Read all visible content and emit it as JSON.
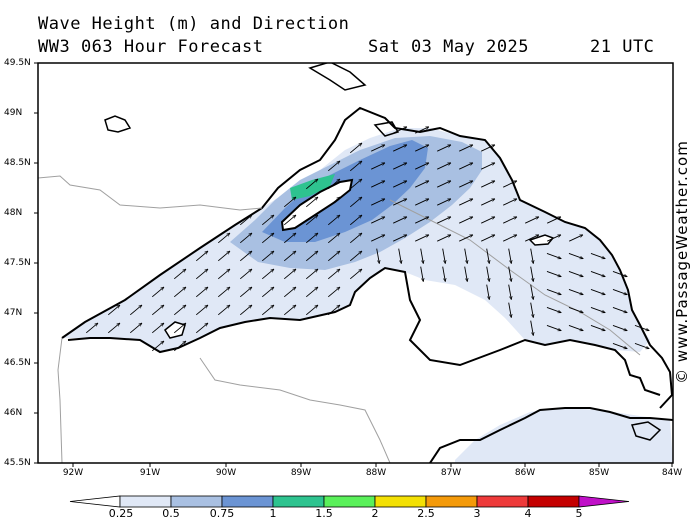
{
  "header": {
    "title": "Wave Height (m) and Direction",
    "model": "WW3 063 Hour Forecast",
    "date": "Sat 03 May 2025",
    "time": "21 UTC"
  },
  "credit": "© www.PassageWeather.com",
  "axes": {
    "lat_labels": [
      "49.5N",
      "49N",
      "48.5N",
      "48N",
      "47.5N",
      "47N",
      "46.5N",
      "46N",
      "45.5N"
    ],
    "lon_labels": [
      "92W",
      "91W",
      "90W",
      "89W",
      "88W",
      "87W",
      "86W",
      "85W",
      "84W"
    ]
  },
  "colorbar": {
    "labels": [
      "0.25",
      "0.5",
      "0.75",
      "1",
      "1.5",
      "2",
      "2.5",
      "3",
      "4",
      "5"
    ],
    "colors": [
      "#ffffff",
      "#e0e8f6",
      "#a9c0e2",
      "#6b94d4",
      "#2ec38f",
      "#5af05a",
      "#f3e004",
      "#f49a0a",
      "#ee3a3a",
      "#c40000",
      "#c010c8"
    ]
  },
  "map_colors": {
    "very_light": "#e0e8f6",
    "light": "#a9c0e2",
    "medium": "#6b94d4",
    "green": "#2ec38f"
  }
}
